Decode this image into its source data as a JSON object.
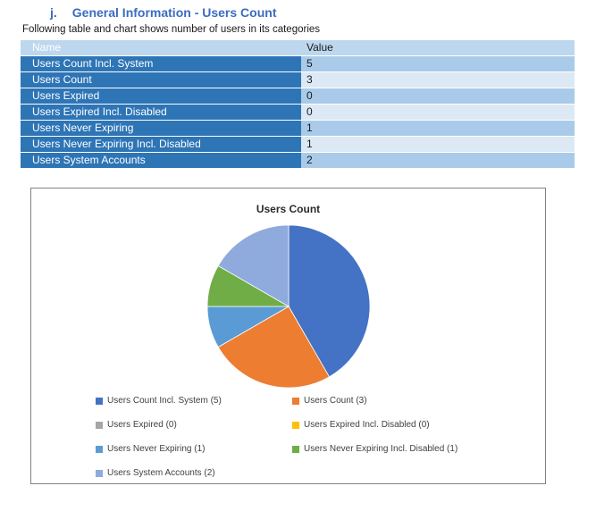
{
  "heading": {
    "number": "j.",
    "title": "General Information - Users Count"
  },
  "intro": "Following table and chart shows number of users in its categories",
  "table": {
    "columns": [
      "Name",
      "Value"
    ],
    "rows": [
      {
        "name": "Users Count Incl. System",
        "value": "5"
      },
      {
        "name": "Users Count",
        "value": "3"
      },
      {
        "name": "Users Expired",
        "value": "0"
      },
      {
        "name": "Users Expired Incl. Disabled",
        "value": "0"
      },
      {
        "name": "Users Never Expiring",
        "value": "1"
      },
      {
        "name": "Users Never Expiring Incl. Disabled",
        "value": "1"
      },
      {
        "name": "Users System Accounts",
        "value": "2"
      }
    ]
  },
  "chart_data": {
    "type": "pie",
    "title": "Users Count",
    "labels": [
      "Users Count Incl. System",
      "Users Count",
      "Users Expired",
      "Users Expired Incl. Disabled",
      "Users Never Expiring",
      "Users Never Expiring Incl. Disabled",
      "Users System Accounts"
    ],
    "values": [
      5,
      3,
      0,
      0,
      1,
      1,
      2
    ],
    "colors": [
      "#4472C4",
      "#ED7D31",
      "#A5A5A5",
      "#FFC000",
      "#5B9BD5",
      "#70AD47",
      "#8FAADC"
    ],
    "legend_labels": [
      "Users Count Incl. System (5)",
      "Users Count (3)",
      "Users Expired (0)",
      "Users Expired Incl. Disabled (0)",
      "Users Never Expiring (1)",
      "Users Never Expiring Incl. Disabled (1)",
      "Users System Accounts (2)"
    ],
    "legend_position": "bottom",
    "start_angle": 0,
    "direction": "clockwise"
  },
  "colors": {
    "heading_text": "#3B6CC0",
    "table_header_bg": "#BDD7EE",
    "table_name_cell_bg": "#2E75B6",
    "table_value_row_dark_bg": "#A9CBE9",
    "table_value_row_light_bg": "#DCE9F5",
    "chart_border": "#818181"
  }
}
